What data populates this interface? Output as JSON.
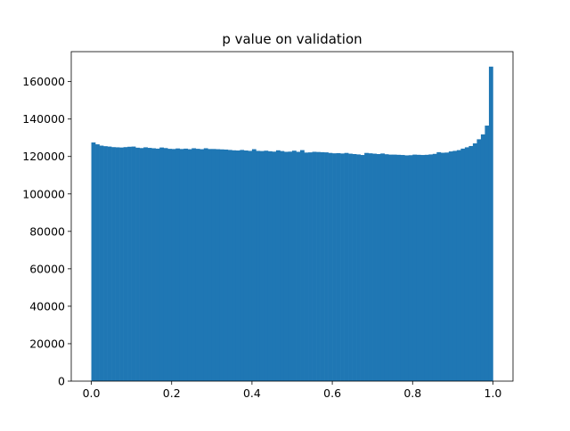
{
  "chart_data": {
    "type": "bar",
    "title": "p value on validation",
    "xlabel": "",
    "ylabel": "",
    "xlim": [
      -0.05,
      1.05
    ],
    "ylim": [
      0,
      176000
    ],
    "grid": false,
    "legend": "none",
    "bar_color": "#1f77b4",
    "bin_width": 0.01,
    "x_ticks": [
      0.0,
      0.2,
      0.4,
      0.6,
      0.8,
      1.0
    ],
    "x_tick_labels": [
      "0.0",
      "0.2",
      "0.4",
      "0.6",
      "0.8",
      "1.0"
    ],
    "y_ticks": [
      0,
      20000,
      40000,
      60000,
      80000,
      100000,
      120000,
      140000,
      160000
    ],
    "y_tick_labels": [
      "0",
      "20000",
      "40000",
      "60000",
      "80000",
      "100000",
      "120000",
      "140000",
      "160000"
    ],
    "bin_starts": [
      0.0,
      0.01,
      0.02,
      0.03,
      0.04,
      0.05,
      0.06,
      0.07,
      0.08,
      0.09,
      0.1,
      0.11,
      0.12,
      0.13,
      0.14,
      0.15,
      0.16,
      0.17,
      0.18,
      0.19,
      0.2,
      0.21,
      0.22,
      0.23,
      0.24,
      0.25,
      0.26,
      0.27,
      0.28,
      0.29,
      0.3,
      0.31,
      0.32,
      0.33,
      0.34,
      0.35,
      0.36,
      0.37,
      0.38,
      0.39,
      0.4,
      0.41,
      0.42,
      0.43,
      0.44,
      0.45,
      0.46,
      0.47,
      0.48,
      0.49,
      0.5,
      0.51,
      0.52,
      0.53,
      0.54,
      0.55,
      0.56,
      0.57,
      0.58,
      0.59,
      0.6,
      0.61,
      0.62,
      0.63,
      0.64,
      0.65,
      0.66,
      0.67,
      0.68,
      0.69,
      0.7,
      0.71,
      0.72,
      0.73,
      0.74,
      0.75,
      0.76,
      0.77,
      0.78,
      0.79,
      0.8,
      0.81,
      0.82,
      0.83,
      0.84,
      0.85,
      0.86,
      0.87,
      0.88,
      0.89,
      0.9,
      0.91,
      0.92,
      0.93,
      0.94,
      0.95,
      0.96,
      0.97,
      0.98,
      0.99
    ],
    "values": [
      127500,
      126500,
      125800,
      125500,
      125300,
      125000,
      124900,
      124800,
      125000,
      125200,
      125300,
      124700,
      124500,
      124900,
      124600,
      124400,
      124200,
      124800,
      124500,
      124100,
      124000,
      124300,
      124000,
      124200,
      123900,
      124400,
      124100,
      123900,
      124400,
      124000,
      124000,
      123900,
      123800,
      123700,
      123500,
      123300,
      123200,
      123500,
      123200,
      123000,
      123900,
      123000,
      122900,
      123100,
      122800,
      122600,
      123300,
      122900,
      122500,
      122600,
      123100,
      122500,
      123400,
      122100,
      122200,
      122500,
      122400,
      122300,
      122200,
      121900,
      121700,
      121800,
      121600,
      121900,
      121500,
      121300,
      121100,
      120800,
      121900,
      121700,
      121500,
      121300,
      121600,
      121200,
      121000,
      121000,
      120900,
      120800,
      120600,
      120700,
      121000,
      120900,
      120800,
      120900,
      121100,
      121400,
      122300,
      122000,
      122100,
      122700,
      123000,
      123400,
      124200,
      124900,
      125600,
      127000,
      129200,
      131800,
      136500,
      168000
    ]
  }
}
